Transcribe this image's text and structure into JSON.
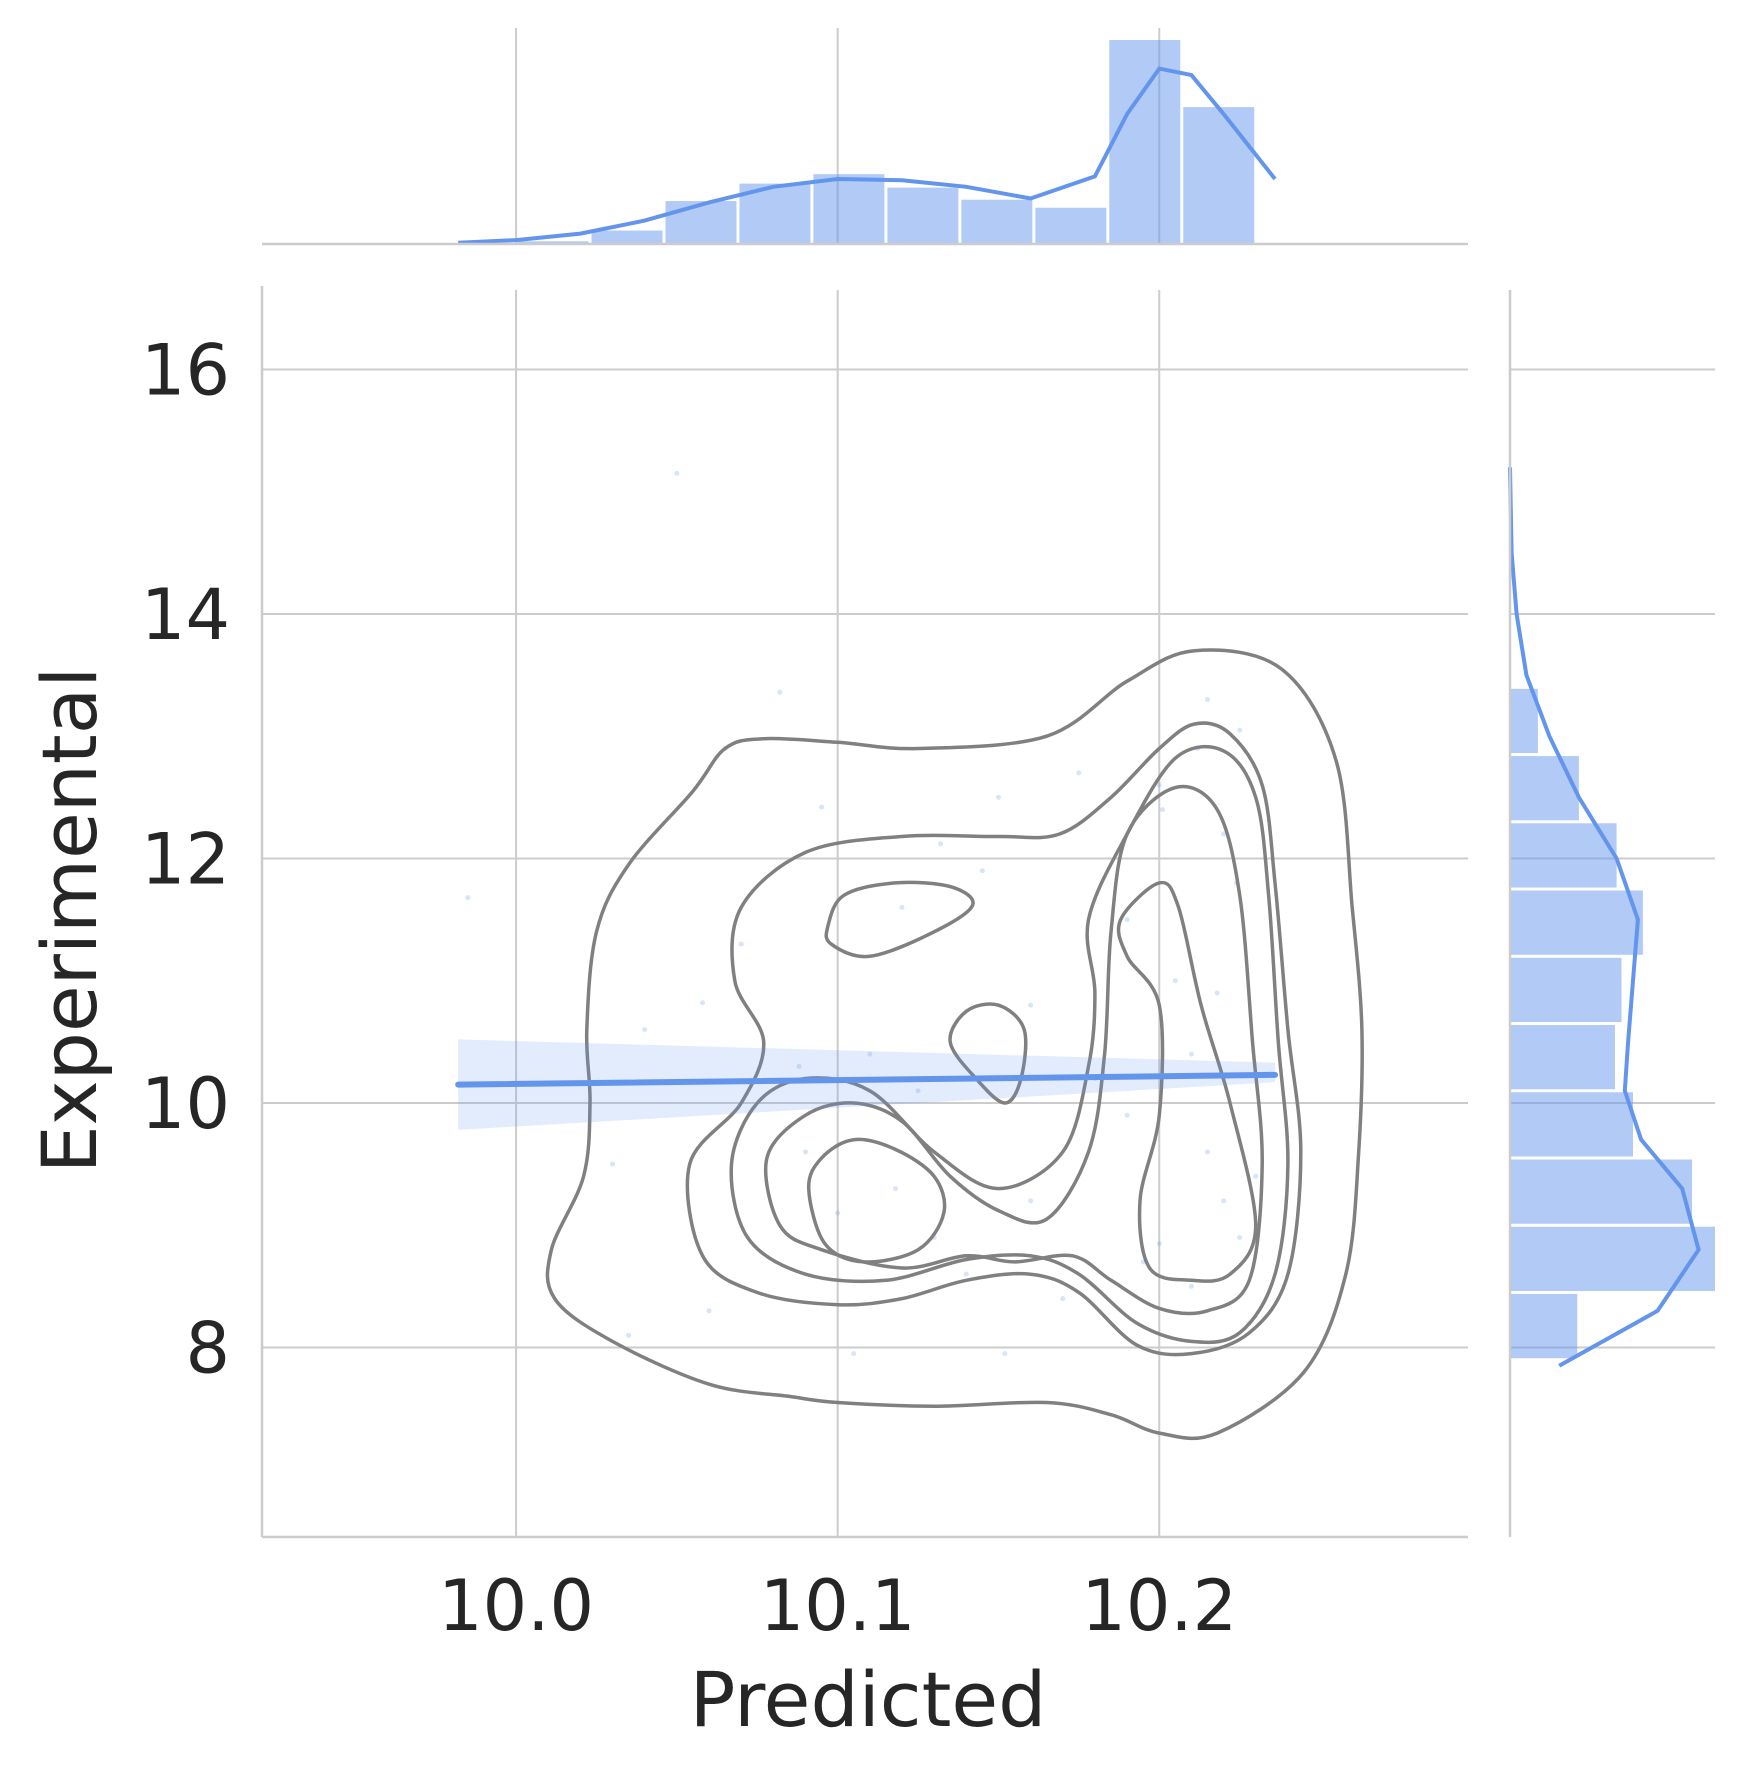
{
  "chart_data": {
    "type": "scatter",
    "title": "",
    "xlabel": "Predicted",
    "ylabel": "Experimental",
    "xlim": [
      9.921,
      10.296
    ],
    "ylim": [
      6.45,
      16.65
    ],
    "xticks": [
      10.0,
      10.1,
      10.2
    ],
    "xtick_labels": [
      "10.0",
      "10.1",
      "10.2"
    ],
    "yticks": [
      8,
      10,
      12,
      14,
      16
    ],
    "ytick_labels": [
      "8",
      "10",
      "12",
      "14",
      "16"
    ],
    "grid": true,
    "color": "#6495ed",
    "kde_contour_color": "#808080",
    "regression": {
      "x": [
        9.982,
        10.236
      ],
      "y": [
        10.15,
        10.23
      ],
      "ci_lower": [
        9.78,
        10.17
      ],
      "ci_upper": [
        10.52,
        10.33
      ]
    },
    "scatter_points": [
      [
        10.05,
        15.15
      ],
      [
        10.082,
        13.36
      ],
      [
        9.985,
        11.68
      ],
      [
        10.058,
        10.82
      ],
      [
        10.095,
        12.42
      ],
      [
        10.215,
        13.3
      ],
      [
        10.225,
        13.05
      ],
      [
        10.132,
        12.12
      ],
      [
        10.201,
        12.4
      ],
      [
        10.2,
        12.6
      ],
      [
        10.22,
        12.2
      ],
      [
        10.19,
        11.5
      ],
      [
        10.205,
        11.0
      ],
      [
        10.21,
        10.4
      ],
      [
        10.215,
        9.6
      ],
      [
        10.22,
        9.2
      ],
      [
        10.225,
        8.9
      ],
      [
        10.2,
        8.85
      ],
      [
        10.21,
        8.5
      ],
      [
        10.23,
        9.4
      ],
      [
        10.118,
        9.3
      ],
      [
        10.1,
        9.1
      ],
      [
        10.13,
        8.9
      ],
      [
        10.14,
        8.6
      ],
      [
        10.09,
        9.6
      ],
      [
        10.16,
        9.2
      ],
      [
        10.17,
        8.4
      ],
      [
        10.06,
        8.3
      ],
      [
        10.03,
        9.5
      ],
      [
        10.07,
        11.3
      ],
      [
        10.12,
        11.6
      ],
      [
        10.145,
        11.9
      ],
      [
        10.16,
        10.8
      ],
      [
        10.18,
        10.2
      ],
      [
        10.19,
        9.9
      ],
      [
        10.04,
        10.6
      ],
      [
        10.065,
        12.9
      ],
      [
        10.035,
        8.1
      ],
      [
        10.105,
        7.95
      ],
      [
        10.152,
        7.95
      ],
      [
        10.195,
        8.7
      ],
      [
        10.228,
        8.2
      ],
      [
        10.212,
        12.9
      ],
      [
        10.224,
        11.8
      ],
      [
        10.218,
        10.9
      ],
      [
        10.11,
        10.4
      ],
      [
        10.125,
        10.1
      ],
      [
        10.088,
        10.3
      ],
      [
        10.15,
        12.5
      ],
      [
        10.175,
        12.7
      ]
    ],
    "kde_contours": [
      [
        [
          10.011,
          8.8
        ],
        [
          10.021,
          9.4
        ],
        [
          10.023,
          10.0
        ],
        [
          10.022,
          10.6
        ],
        [
          10.025,
          11.4
        ],
        [
          10.035,
          11.95
        ],
        [
          10.055,
          12.55
        ],
        [
          10.065,
          12.9
        ],
        [
          10.077,
          12.98
        ],
        [
          10.1,
          12.95
        ],
        [
          10.125,
          12.9
        ],
        [
          10.165,
          13.0
        ],
        [
          10.19,
          13.45
        ],
        [
          10.211,
          13.7
        ],
        [
          10.238,
          13.55
        ],
        [
          10.255,
          12.8
        ],
        [
          10.26,
          11.6
        ],
        [
          10.263,
          10.6
        ],
        [
          10.262,
          9.6
        ],
        [
          10.258,
          8.6
        ],
        [
          10.245,
          7.8
        ],
        [
          10.218,
          7.3
        ],
        [
          10.2,
          7.3
        ],
        [
          10.185,
          7.45
        ],
        [
          10.165,
          7.55
        ],
        [
          10.13,
          7.52
        ],
        [
          10.1,
          7.55
        ],
        [
          10.085,
          7.6
        ],
        [
          10.06,
          7.7
        ],
        [
          10.03,
          8.05
        ],
        [
          10.012,
          8.4
        ]
      ],
      [
        [
          10.054,
          9.5
        ],
        [
          10.07,
          10.0
        ],
        [
          10.077,
          10.5
        ],
        [
          10.068,
          11.0
        ],
        [
          10.07,
          11.6
        ],
        [
          10.09,
          12.05
        ],
        [
          10.12,
          12.18
        ],
        [
          10.15,
          12.18
        ],
        [
          10.169,
          12.2
        ],
        [
          10.185,
          12.5
        ],
        [
          10.2,
          12.9
        ],
        [
          10.211,
          13.1
        ],
        [
          10.222,
          13.02
        ],
        [
          10.232,
          12.6
        ],
        [
          10.236,
          11.8
        ],
        [
          10.24,
          10.6
        ],
        [
          10.244,
          9.6
        ],
        [
          10.24,
          8.6
        ],
        [
          10.228,
          8.12
        ],
        [
          10.21,
          7.95
        ],
        [
          10.193,
          8.02
        ],
        [
          10.175,
          8.45
        ],
        [
          10.16,
          8.6
        ],
        [
          10.14,
          8.55
        ],
        [
          10.12,
          8.4
        ],
        [
          10.1,
          8.35
        ],
        [
          10.075,
          8.45
        ],
        [
          10.058,
          8.75
        ]
      ],
      [
        [
          10.067,
          9.5
        ],
        [
          10.075,
          10.0
        ],
        [
          10.09,
          10.2
        ],
        [
          10.11,
          10.1
        ],
        [
          10.13,
          9.6
        ],
        [
          10.15,
          9.3
        ],
        [
          10.17,
          9.6
        ],
        [
          10.178,
          10.3
        ],
        [
          10.18,
          10.9
        ],
        [
          10.178,
          11.5
        ],
        [
          10.19,
          12.2
        ],
        [
          10.205,
          12.82
        ],
        [
          10.22,
          12.88
        ],
        [
          10.23,
          12.5
        ],
        [
          10.234,
          11.7
        ],
        [
          10.237,
          10.5
        ],
        [
          10.24,
          9.5
        ],
        [
          10.236,
          8.6
        ],
        [
          10.225,
          8.12
        ],
        [
          10.21,
          8.05
        ],
        [
          10.193,
          8.2
        ],
        [
          10.175,
          8.6
        ],
        [
          10.16,
          8.75
        ],
        [
          10.14,
          8.72
        ],
        [
          10.115,
          8.55
        ],
        [
          10.09,
          8.6
        ],
        [
          10.072,
          8.9
        ]
      ],
      [
        [
          10.082,
          9.0
        ],
        [
          10.095,
          8.8
        ],
        [
          10.12,
          8.65
        ],
        [
          10.14,
          8.75
        ],
        [
          10.155,
          8.7
        ],
        [
          10.173,
          8.75
        ],
        [
          10.185,
          8.55
        ],
        [
          10.2,
          8.32
        ],
        [
          10.215,
          8.3
        ],
        [
          10.228,
          8.55
        ],
        [
          10.232,
          9.5
        ],
        [
          10.229,
          10.5
        ],
        [
          10.225,
          11.7
        ],
        [
          10.218,
          12.4
        ],
        [
          10.205,
          12.58
        ],
        [
          10.19,
          12.2
        ],
        [
          10.185,
          11.4
        ],
        [
          10.183,
          10.4
        ],
        [
          10.178,
          9.6
        ],
        [
          10.165,
          9.05
        ],
        [
          10.15,
          9.12
        ],
        [
          10.135,
          9.4
        ],
        [
          10.12,
          9.85
        ],
        [
          10.105,
          10.0
        ],
        [
          10.09,
          9.9
        ],
        [
          10.078,
          9.55
        ]
      ],
      [
        [
          10.097,
          11.45
        ],
        [
          10.102,
          11.7
        ],
        [
          10.118,
          11.8
        ],
        [
          10.135,
          11.77
        ],
        [
          10.142,
          11.62
        ],
        [
          10.13,
          11.4
        ],
        [
          10.11,
          11.2
        ],
        [
          10.098,
          11.3
        ]
      ],
      [
        [
          10.188,
          11.5
        ],
        [
          10.2,
          11.8
        ],
        [
          10.206,
          11.6
        ],
        [
          10.213,
          10.8
        ],
        [
          10.222,
          10.0
        ],
        [
          10.23,
          9.0
        ],
        [
          10.222,
          8.6
        ],
        [
          10.21,
          8.55
        ],
        [
          10.197,
          8.65
        ],
        [
          10.194,
          9.2
        ],
        [
          10.2,
          9.9
        ],
        [
          10.2,
          10.8
        ],
        [
          10.19,
          11.2
        ]
      ],
      [
        [
          10.135,
          10.5
        ],
        [
          10.14,
          10.75
        ],
        [
          10.15,
          10.8
        ],
        [
          10.158,
          10.6
        ],
        [
          10.157,
          10.2
        ],
        [
          10.152,
          10.0
        ],
        [
          10.143,
          10.2
        ]
      ],
      [
        [
          10.091,
          9.3
        ],
        [
          10.095,
          9.55
        ],
        [
          10.105,
          9.7
        ],
        [
          10.118,
          9.62
        ],
        [
          10.13,
          9.4
        ],
        [
          10.133,
          9.1
        ],
        [
          10.125,
          8.8
        ],
        [
          10.108,
          8.7
        ],
        [
          10.096,
          8.85
        ]
      ]
    ],
    "x_marginal": {
      "bin_edges": [
        10.0,
        10.023,
        10.046,
        10.069,
        10.092,
        10.115,
        10.138,
        10.161,
        10.184,
        10.207,
        10.23
      ],
      "counts": [
        2,
        10,
        32,
        45,
        52,
        42,
        33,
        27,
        152,
        102
      ],
      "kde_x": [
        9.982,
        10.0,
        10.02,
        10.04,
        10.06,
        10.08,
        10.1,
        10.12,
        10.14,
        10.16,
        10.18,
        10.19,
        10.2,
        10.21,
        10.22,
        10.236
      ],
      "kde_y": [
        1,
        3,
        8,
        18,
        32,
        44,
        50,
        49,
        44,
        35,
        52,
        100,
        135,
        130,
        100,
        50
      ]
    },
    "y_marginal": {
      "bin_edges": [
        7.9,
        8.45,
        9.0,
        9.55,
        10.1,
        10.65,
        11.2,
        11.75,
        12.3,
        12.85,
        13.4
      ],
      "counts": [
        41,
        125,
        111,
        75,
        64,
        68,
        81,
        65,
        42,
        17
      ],
      "kde_y": [
        7.85,
        8.3,
        8.8,
        9.3,
        9.7,
        10.1,
        10.5,
        11.0,
        11.5,
        12.0,
        12.5,
        13.0,
        13.5,
        14.0,
        14.5,
        15.2
      ],
      "kde_x": [
        30,
        90,
        115,
        105,
        80,
        70,
        72,
        75,
        78,
        65,
        42,
        24,
        10,
        4,
        1,
        0
      ]
    }
  }
}
